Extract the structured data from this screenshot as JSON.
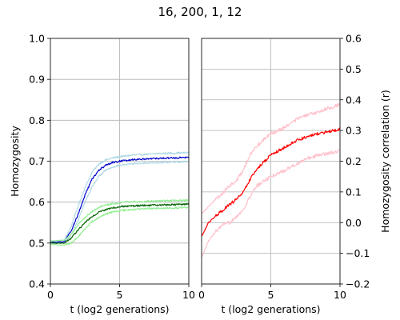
{
  "title": "16, 200, 1, 12",
  "chart_data": [
    {
      "type": "line",
      "panel": "left",
      "xlabel": "t (log2 generations)",
      "ylabel": "Homozygosity",
      "xlim": [
        0,
        10
      ],
      "ylim": [
        0.4,
        1.0
      ],
      "xticks": [
        0,
        5,
        10
      ],
      "yticks": [
        0.4,
        0.5,
        0.6,
        0.7,
        0.8,
        0.9,
        1.0
      ],
      "ytick_labels": [
        "0.4",
        "0.5",
        "0.6",
        "0.7",
        "0.8",
        "0.9",
        "1.0"
      ],
      "grid": true,
      "series": [
        {
          "color": "#add8e6",
          "width": 1.2,
          "noise": 0.002,
          "x": [
            0,
            1,
            1.5,
            2,
            2.5,
            3,
            3.5,
            4,
            4.5,
            5,
            5.5,
            6,
            6.5,
            7,
            8,
            9,
            10
          ],
          "y": [
            0.505,
            0.507,
            0.54,
            0.59,
            0.635,
            0.672,
            0.693,
            0.703,
            0.708,
            0.711,
            0.713,
            0.715,
            0.716,
            0.717,
            0.719,
            0.72,
            0.721
          ]
        },
        {
          "color": "#add8e6",
          "width": 1.2,
          "noise": 0.002,
          "x": [
            0,
            1,
            1.5,
            2,
            2.5,
            3,
            3.5,
            4,
            4.5,
            5,
            5.5,
            6,
            6.5,
            7,
            8,
            9,
            10
          ],
          "y": [
            0.5,
            0.5,
            0.52,
            0.555,
            0.6,
            0.637,
            0.663,
            0.678,
            0.686,
            0.69,
            0.692,
            0.694,
            0.695,
            0.696,
            0.697,
            0.698,
            0.699
          ]
        },
        {
          "color": "#0000cd",
          "width": 1.2,
          "noise": 0.002,
          "x": [
            0,
            1,
            1.5,
            2,
            2.5,
            3,
            3.5,
            4,
            4.5,
            5,
            5.5,
            6,
            6.5,
            7,
            8,
            9,
            10
          ],
          "y": [
            0.502,
            0.503,
            0.53,
            0.57,
            0.617,
            0.655,
            0.678,
            0.69,
            0.697,
            0.7,
            0.702,
            0.704,
            0.705,
            0.706,
            0.707,
            0.708,
            0.709
          ]
        },
        {
          "color": "#90ee90",
          "width": 1.2,
          "noise": 0.002,
          "x": [
            0,
            1,
            1.5,
            2,
            2.5,
            3,
            3.5,
            4,
            4.5,
            5,
            5.5,
            6,
            7,
            8,
            9,
            10
          ],
          "y": [
            0.505,
            0.507,
            0.522,
            0.545,
            0.563,
            0.577,
            0.587,
            0.593,
            0.596,
            0.598,
            0.6,
            0.601,
            0.602,
            0.603,
            0.604,
            0.605
          ]
        },
        {
          "color": "#90ee90",
          "width": 1.2,
          "noise": 0.002,
          "x": [
            0,
            1,
            1.5,
            2,
            2.5,
            3,
            3.5,
            4,
            4.5,
            5,
            5.5,
            6,
            7,
            8,
            9,
            10
          ],
          "y": [
            0.497,
            0.495,
            0.5,
            0.515,
            0.535,
            0.552,
            0.563,
            0.571,
            0.576,
            0.579,
            0.581,
            0.582,
            0.584,
            0.585,
            0.586,
            0.587
          ]
        },
        {
          "color": "#006400",
          "width": 1.2,
          "noise": 0.002,
          "x": [
            0,
            1,
            1.5,
            2,
            2.5,
            3,
            3.5,
            4,
            4.5,
            5,
            5.5,
            6,
            7,
            8,
            9,
            10
          ],
          "y": [
            0.5,
            0.5,
            0.512,
            0.532,
            0.55,
            0.565,
            0.575,
            0.582,
            0.586,
            0.589,
            0.59,
            0.591,
            0.592,
            0.593,
            0.594,
            0.595
          ]
        }
      ]
    },
    {
      "type": "line",
      "panel": "right",
      "xlabel": "t (log2 generations)",
      "ylabel": "Homozygosity correlation (r)",
      "xlim": [
        0,
        10
      ],
      "ylim": [
        -0.2,
        0.6
      ],
      "xticks": [
        0,
        5,
        10
      ],
      "yticks": [
        -0.2,
        -0.1,
        0.0,
        0.1,
        0.2,
        0.3,
        0.4,
        0.5,
        0.6
      ],
      "ytick_labels": [
        "−0.2",
        "−0.1",
        "0.0",
        "0.1",
        "0.2",
        "0.3",
        "0.4",
        "0.5",
        "0.6"
      ],
      "grid": true,
      "series": [
        {
          "color": "#ffc0cb",
          "width": 1.2,
          "noise": 0.006,
          "x": [
            0,
            1,
            1.5,
            2,
            2.5,
            3,
            3.5,
            4,
            5,
            6,
            7,
            8,
            9,
            10
          ],
          "y": [
            0.03,
            0.075,
            0.095,
            0.12,
            0.135,
            0.17,
            0.22,
            0.25,
            0.29,
            0.31,
            0.34,
            0.355,
            0.37,
            0.385
          ]
        },
        {
          "color": "#ffc0cb",
          "width": 1.2,
          "noise": 0.006,
          "x": [
            0,
            0.5,
            1,
            1.5,
            2,
            2.5,
            3,
            3.5,
            4,
            5,
            6,
            7,
            8,
            9,
            10
          ],
          "y": [
            -0.115,
            -0.06,
            -0.03,
            -0.01,
            0.0,
            0.02,
            0.04,
            0.085,
            0.12,
            0.15,
            0.17,
            0.195,
            0.215,
            0.225,
            0.235
          ]
        },
        {
          "color": "#ff0000",
          "width": 1.2,
          "noise": 0.005,
          "x": [
            0,
            0.5,
            1,
            1.5,
            2,
            2.5,
            3,
            3.5,
            4,
            5,
            6,
            7,
            8,
            9,
            10
          ],
          "y": [
            -0.045,
            0.0,
            0.02,
            0.04,
            0.058,
            0.075,
            0.1,
            0.14,
            0.175,
            0.22,
            0.245,
            0.27,
            0.285,
            0.295,
            0.305
          ]
        }
      ]
    }
  ]
}
